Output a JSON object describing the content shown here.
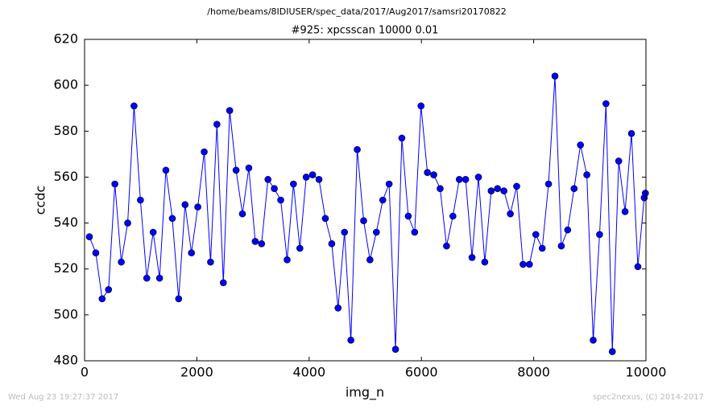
{
  "chart_data": {
    "type": "line",
    "suptitle": "/home/beams/8IDIUSER/spec_data/2017/Aug2017/samsri20170822",
    "title": "#925: xpcsscan 10000 0.01",
    "xlabel": "img_n",
    "ylabel": "ccdc",
    "footer_left": "Wed Aug 23 19:27:37 2017",
    "footer_right": "spec2nexus, (C) 2014-2017",
    "x": [
      86,
      200,
      313,
      427,
      540,
      654,
      768,
      881,
      995,
      1108,
      1222,
      1336,
      1449,
      1563,
      1676,
      1790,
      1904,
      2017,
      2131,
      2244,
      2358,
      2472,
      2585,
      2699,
      2812,
      2926,
      3040,
      3153,
      3267,
      3380,
      3494,
      3608,
      3721,
      3835,
      3948,
      4062,
      4176,
      4289,
      4403,
      4516,
      4630,
      4744,
      4857,
      4971,
      5084,
      5198,
      5312,
      5425,
      5539,
      5652,
      5766,
      5880,
      5993,
      6107,
      6220,
      6334,
      6448,
      6561,
      6675,
      6788,
      6902,
      7016,
      7129,
      7243,
      7356,
      7470,
      7584,
      7697,
      7811,
      7924,
      8038,
      8152,
      8265,
      8379,
      8492,
      8606,
      8720,
      8833,
      8947,
      9060,
      9174,
      9288,
      9401,
      9515,
      9628,
      9742,
      9856,
      9969,
      9990
    ],
    "series": [
      {
        "name": "ccdc",
        "color": "#0000ff",
        "values": [
          534,
          527,
          507,
          511,
          557,
          523,
          540,
          591,
          550,
          516,
          536,
          516,
          563,
          542,
          507,
          548,
          527,
          547,
          571,
          523,
          583,
          514,
          589,
          563,
          544,
          564,
          532,
          531,
          559,
          555,
          550,
          524,
          557,
          529,
          560,
          561,
          559,
          542,
          531,
          503,
          536,
          489,
          572,
          541,
          524,
          536,
          550,
          557,
          485,
          577,
          543,
          536,
          591,
          562,
          561,
          555,
          530,
          543,
          559,
          559,
          525,
          560,
          523,
          554,
          555,
          554,
          544,
          556,
          522,
          522,
          535,
          529,
          557,
          604,
          530,
          537,
          555,
          574,
          561,
          489,
          535,
          592,
          484,
          567,
          545,
          579,
          521,
          551,
          553
        ]
      }
    ],
    "xlim": [
      0,
      10000
    ],
    "xticks": [
      0,
      2000,
      4000,
      6000,
      8000,
      10000
    ],
    "ylim": [
      480,
      620
    ],
    "yticks": [
      480,
      500,
      520,
      540,
      560,
      580,
      600,
      620
    ]
  }
}
